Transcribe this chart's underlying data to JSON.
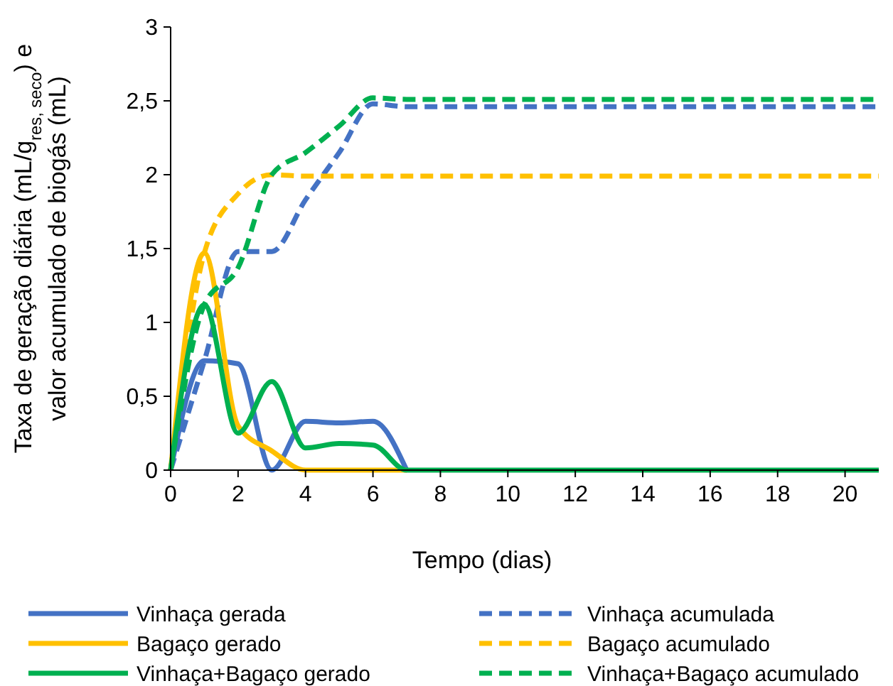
{
  "chart_data": {
    "type": "line",
    "xlabel": "Tempo (dias)",
    "ylabel": "Taxa de geração  diária (mL/g$_{res, seco}$) e\nvalor acumulado de biogás (mL)",
    "x": [
      0,
      1,
      2,
      3,
      4,
      5,
      6,
      7,
      8,
      9,
      10,
      11,
      12,
      13,
      14,
      15,
      16,
      17,
      18,
      19,
      20,
      21
    ],
    "xlim": [
      0,
      21
    ],
    "xticks": [
      0,
      2,
      4,
      6,
      8,
      10,
      12,
      14,
      16,
      18,
      20
    ],
    "ylim": [
      0,
      3
    ],
    "yticks": [
      0,
      {
        "value": 0.5,
        "label": "0,5"
      },
      1,
      {
        "value": 1.5,
        "label": "1,5"
      },
      2,
      {
        "value": 2.5,
        "label": "2,5"
      },
      3
    ],
    "grid": false,
    "legend": "bottom",
    "marker": "none",
    "series": [
      {
        "name": "Vinhaça gerada",
        "color": "#4472c4",
        "line_style": "solid",
        "values": [
          0,
          0.74,
          0.72,
          0,
          0.33,
          0.32,
          0.33,
          0,
          null,
          null,
          null,
          null,
          null,
          null,
          null,
          null,
          null,
          null,
          null,
          null,
          null,
          null
        ]
      },
      {
        "name": "Vinhaça acumulada",
        "color": "#4472c4",
        "line_style": "dashed",
        "values": [
          0,
          0.74,
          1.48,
          1.48,
          1.83,
          2.15,
          2.48,
          2.46,
          2.46,
          2.46,
          2.46,
          2.46,
          2.46,
          2.46,
          2.46,
          2.46,
          2.46,
          2.46,
          2.46,
          2.46,
          2.46,
          2.46
        ]
      },
      {
        "name": "Bagaço gerado",
        "color": "#ffc000",
        "line_style": "solid",
        "values": [
          0,
          1.47,
          0.3,
          0.13,
          0,
          0,
          0,
          0,
          null,
          null,
          null,
          null,
          null,
          null,
          null,
          null,
          null,
          null,
          null,
          null,
          null,
          null
        ]
      },
      {
        "name": "Bagaço acumulado",
        "color": "#ffc000",
        "line_style": "dashed",
        "values": [
          0,
          1.47,
          1.87,
          2,
          1.99,
          1.99,
          1.99,
          1.99,
          1.99,
          1.99,
          1.99,
          1.99,
          1.99,
          1.99,
          1.99,
          1.99,
          1.99,
          1.99,
          1.99,
          1.99,
          1.99,
          1.99
        ]
      },
      {
        "name": "Vinhaça+Bagaço gerado",
        "color": "#00b050",
        "line_style": "solid",
        "values": [
          0,
          1.12,
          0.25,
          0.6,
          0.15,
          0.18,
          0.17,
          0,
          0,
          0,
          0,
          0,
          0,
          0,
          0,
          0,
          0,
          0,
          0,
          0,
          0,
          0
        ]
      },
      {
        "name": "Vinhaça+Bagaço acumulado",
        "color": "#00b050",
        "line_style": "dashed",
        "values": [
          0,
          1.12,
          1.37,
          2,
          2.15,
          2.33,
          2.52,
          2.51,
          2.51,
          2.51,
          2.51,
          2.51,
          2.51,
          2.51,
          2.51,
          2.51,
          2.51,
          2.51,
          2.51,
          2.51,
          2.51,
          2.51
        ]
      }
    ]
  }
}
